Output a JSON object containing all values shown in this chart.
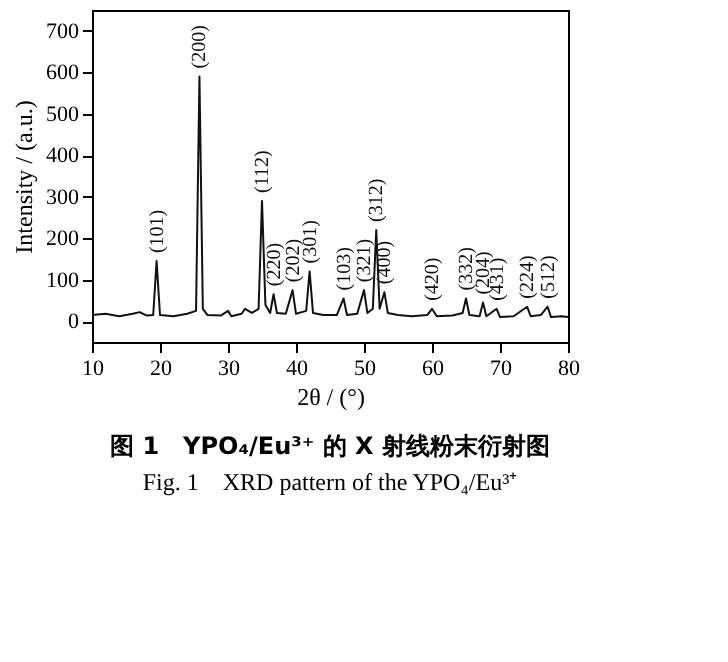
{
  "chart_data": {
    "type": "line",
    "title": "图 1　YPO₄/Eu³⁺ 的 X 射线粉末衍射图",
    "subtitle": "Fig. 1　XRD pattern of the YPO₄/Eu³⁺",
    "xlabel": "2θ / (°)",
    "ylabel": "Intensity / (a.u.)",
    "x": [
      10,
      12,
      14,
      16,
      17,
      18,
      19,
      19.5,
      20,
      22,
      24,
      25.3,
      25.8,
      26.3,
      27,
      29,
      30,
      30.5,
      32,
      32.5,
      33.5,
      34.5,
      35,
      35.5,
      36.2,
      36.7,
      37.2,
      38.5,
      39.5,
      40,
      41.5,
      42,
      42.5,
      44,
      46,
      47,
      47.5,
      49,
      50,
      50.5,
      51.3,
      51.8,
      52.3,
      53,
      53.5,
      55,
      57,
      59.3,
      60,
      60.7,
      63,
      64.5,
      65,
      65.5,
      67,
      67.5,
      68,
      69.5,
      70,
      72,
      74,
      74.5,
      76,
      77,
      77.5,
      79,
      80
    ],
    "series": [
      {
        "color": "#111111",
        "values": [
          15,
          18,
          12,
          18,
          22,
          14,
          15,
          145,
          15,
          12,
          18,
          25,
          590,
          30,
          15,
          14,
          25,
          12,
          18,
          30,
          20,
          30,
          290,
          40,
          20,
          65,
          20,
          18,
          75,
          18,
          25,
          120,
          20,
          15,
          15,
          55,
          15,
          18,
          75,
          20,
          30,
          220,
          30,
          70,
          20,
          15,
          12,
          15,
          30,
          12,
          14,
          20,
          55,
          15,
          12,
          45,
          12,
          30,
          10,
          12,
          35,
          12,
          15,
          35,
          10,
          12,
          10
        ]
      }
    ],
    "xlim": [
      10,
      80
    ],
    "xticks": [
      10,
      20,
      30,
      40,
      50,
      60,
      70,
      80
    ],
    "ylim": [
      -50,
      750
    ],
    "yticks": [
      0,
      100,
      200,
      300,
      400,
      500,
      600,
      700
    ],
    "grid": false,
    "marker": "none",
    "line_style": "solid",
    "annotations": [
      {
        "text": "(101)",
        "x": 19.5,
        "y": 145
      },
      {
        "text": "(200)",
        "x": 25.8,
        "y": 590
      },
      {
        "text": "(112)",
        "x": 35,
        "y": 290
      },
      {
        "text": "(220)",
        "x": 36.7,
        "y": 65
      },
      {
        "text": "(202)",
        "x": 39.5,
        "y": 75
      },
      {
        "text": "(301)",
        "x": 42,
        "y": 120
      },
      {
        "text": "(103)",
        "x": 47,
        "y": 55
      },
      {
        "text": "(321)",
        "x": 50,
        "y": 75
      },
      {
        "text": "(312)",
        "x": 51.8,
        "y": 220
      },
      {
        "text": "(400)",
        "x": 53,
        "y": 70
      },
      {
        "text": "(420)",
        "x": 60,
        "y": 30
      },
      {
        "text": "(332)",
        "x": 65,
        "y": 55
      },
      {
        "text": "(204)",
        "x": 67.5,
        "y": 45
      },
      {
        "text": "(431)",
        "x": 69.5,
        "y": 30
      },
      {
        "text": "(224)",
        "x": 74,
        "y": 35
      },
      {
        "text": "(512)",
        "x": 77,
        "y": 35
      }
    ]
  }
}
